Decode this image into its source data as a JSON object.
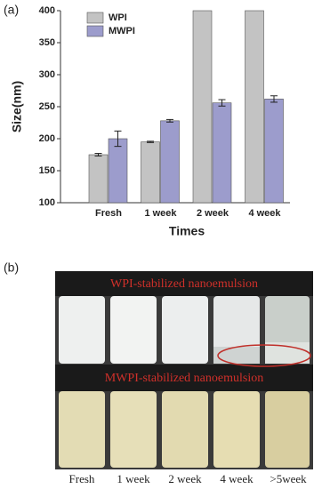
{
  "panel_a_label": "(a)",
  "chart_data": {
    "type": "bar",
    "x_label": "Times",
    "y_label": "Size(nm)",
    "categories": [
      "Fresh",
      "1 week",
      "2 week",
      "4 week"
    ],
    "series": [
      {
        "name": "WPI",
        "color": "#c3c3c3",
        "values": [
          175,
          195,
          400,
          400
        ],
        "errors": [
          2,
          1,
          null,
          null
        ]
      },
      {
        "name": "MWPI",
        "color": "#9c9ccc",
        "values": [
          200,
          228,
          256,
          262
        ],
        "errors": [
          12,
          2,
          5,
          5
        ]
      }
    ],
    "ylim": [
      100,
      400
    ],
    "yticks": [
      100,
      150,
      200,
      250,
      300,
      350,
      400
    ],
    "grid": false,
    "legend": "upper left"
  },
  "photo": {
    "panel_label": "(b)",
    "top_caption": "WPI-stabilized nanoemulsion",
    "bottom_caption": "MWPI-stabilized nanoemulsion",
    "labels": [
      "Fresh",
      "1 week",
      "2 week",
      "4 week",
      ">5week"
    ]
  }
}
